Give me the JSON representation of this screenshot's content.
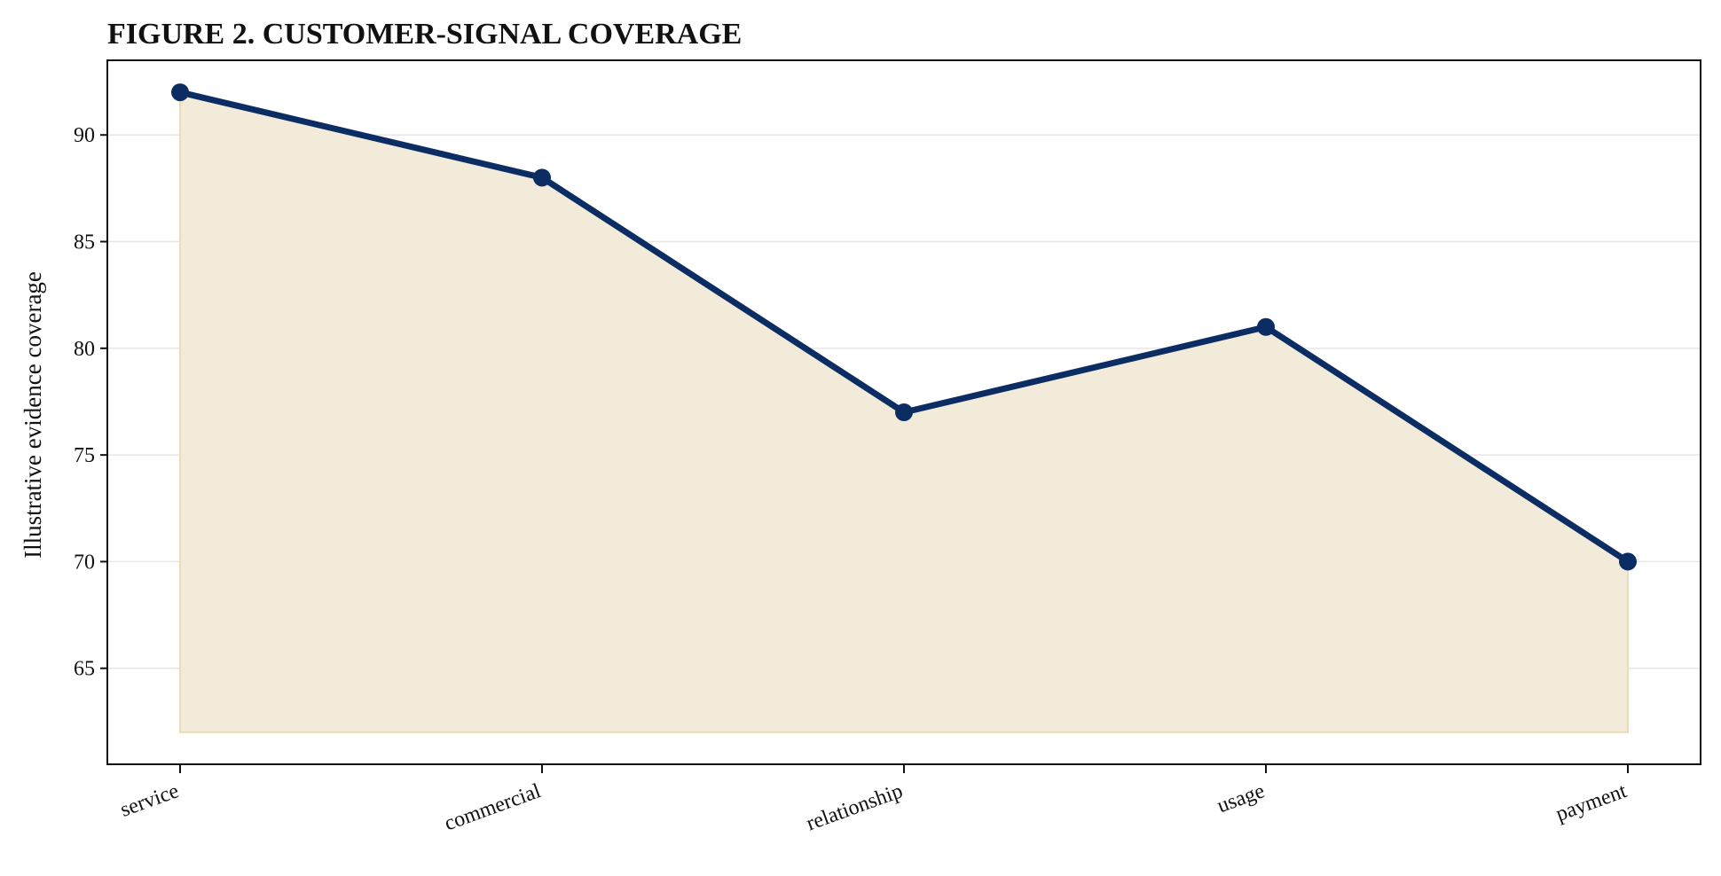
{
  "chart_data": {
    "type": "area",
    "title": "FIGURE 2. CUSTOMER-SIGNAL COVERAGE",
    "xlabel": "",
    "ylabel": "Illustrative evidence coverage",
    "categories": [
      "service",
      "commercial",
      "relationship",
      "usage",
      "payment"
    ],
    "series": [
      {
        "values": [
          92,
          88,
          77,
          81,
          70
        ]
      }
    ],
    "area_baseline": 62,
    "ylim": [
      60.5,
      93.5
    ],
    "yticks": [
      65,
      70,
      75,
      80,
      85,
      90
    ],
    "grid": "horizontal",
    "colors": {
      "line": "#0b2d63",
      "fill": "#f3ebda",
      "fill_edge": "#eadcb9",
      "grid": "#e6e6e6",
      "axis": "#111111"
    }
  }
}
